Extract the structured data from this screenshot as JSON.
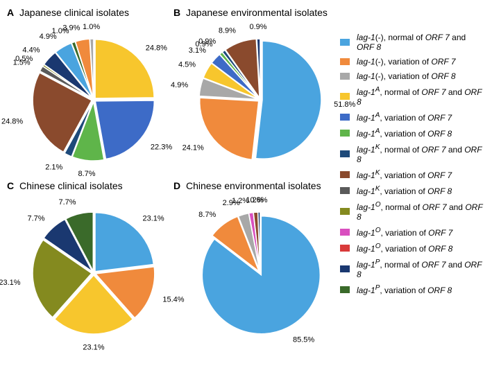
{
  "colors": {
    "c1": "#4aa4df",
    "c2": "#f08a3c",
    "c3": "#a8a8a8",
    "c4": "#f7c62d",
    "c5": "#3d6bc7",
    "c6": "#5fb54a",
    "c7": "#1e4a7a",
    "c8": "#8a4a2d",
    "c9": "#5a5a5a",
    "c10": "#848a1f",
    "c11": "#d94fbf",
    "c12": "#d93a3a",
    "c13": "#1a3870",
    "c14": "#3a6a2a"
  },
  "legend": [
    {
      "key": "c1",
      "html": "<em>lag-1</em>(-), normal of <em>ORF 7</em> and <em>ORF 8</em>"
    },
    {
      "key": "c2",
      "html": "<em>lag-1</em>(-), variation of <em>ORF 7</em>"
    },
    {
      "key": "c3",
      "html": "<em>lag-1</em>(-), variation of <em>ORF 8</em>"
    },
    {
      "key": "c4",
      "html": "<em>lag-1<sup>A</sup></em>, normal of <em>ORF 7</em> and <em>ORF 8</em>"
    },
    {
      "key": "c5",
      "html": "<em>lag-1<sup>A</sup></em>, variation of <em>ORF 7</em>"
    },
    {
      "key": "c6",
      "html": "<em>lag-1<sup>A</sup></em>, variation of <em>ORF 8</em>"
    },
    {
      "key": "c7",
      "html": "<em>lag-1<sup>K</sup></em>, normal of <em>ORF 7</em> and <em>ORF 8</em>"
    },
    {
      "key": "c8",
      "html": "<em>lag-1<sup>K</sup></em>, variation of <em>ORF 7</em>"
    },
    {
      "key": "c9",
      "html": "<em>lag-1<sup>K</sup></em>, variation of <em>ORF 8</em>"
    },
    {
      "key": "c10",
      "html": "<em>lag-1<sup>O</sup></em>, normal of <em>ORF 7</em> and <em>ORF 8</em>"
    },
    {
      "key": "c11",
      "html": "<em>lag-1<sup>O</sup></em>, variation of <em>ORF 7</em>"
    },
    {
      "key": "c12",
      "html": "<em>lag-1<sup>O</sup></em>, variation of <em>ORF 8</em>"
    },
    {
      "key": "c13",
      "html": "<em>lag-1<sup>P</sup></em>, normal of <em>ORF 7</em> and <em>ORF 8</em>"
    },
    {
      "key": "c14",
      "html": "<em>lag-1<sup>P</sup></em>, variation of <em>ORF 8</em>"
    }
  ],
  "panels": [
    {
      "id": "A",
      "title": "Japanese clinical isolates",
      "slices": [
        {
          "key": "c4",
          "v": 24.8,
          "label": "24.8%"
        },
        {
          "key": "c5",
          "v": 22.3,
          "label": "22.3%"
        },
        {
          "key": "c6",
          "v": 8.7,
          "label": "8.7%"
        },
        {
          "key": "c7",
          "v": 2.1,
          "label": "2.1%"
        },
        {
          "key": "c8",
          "v": 24.8,
          "label": "24.8%"
        },
        {
          "key": "c9",
          "v": 1.5,
          "label": "1.5%"
        },
        {
          "key": "c10",
          "v": 0.5,
          "label": "0.5%"
        },
        {
          "key": "c13",
          "v": 4.4,
          "label": "4.4%"
        },
        {
          "key": "c1",
          "v": 4.9,
          "label": "4.9%"
        },
        {
          "key": "c14",
          "v": 1.0,
          "label": "1.0%"
        },
        {
          "key": "c2",
          "v": 3.9,
          "label": "3.9%"
        },
        {
          "key": "c3",
          "v": 1.0,
          "label": "1.0%"
        }
      ]
    },
    {
      "id": "B",
      "title": "Japanese environmental isolates",
      "slices": [
        {
          "key": "c1",
          "v": 51.8,
          "label": "51.8%"
        },
        {
          "key": "c2",
          "v": 24.1,
          "label": "24.1%"
        },
        {
          "key": "c3",
          "v": 4.9,
          "label": "4.9%"
        },
        {
          "key": "c4",
          "v": 4.5,
          "label": "4.5%"
        },
        {
          "key": "c5",
          "v": 3.1,
          "label": "3.1%"
        },
        {
          "key": "c6",
          "v": 0.9,
          "label": "0.9%"
        },
        {
          "key": "c7",
          "v": 0.9,
          "label": "0.9%"
        },
        {
          "key": "c8",
          "v": 8.9,
          "label": "8.9%"
        },
        {
          "key": "c13",
          "v": 0.9,
          "label": "0.9%"
        }
      ]
    },
    {
      "id": "C",
      "title": "Chinese clinical isolates",
      "slices": [
        {
          "key": "c1",
          "v": 23.1,
          "label": "23.1%"
        },
        {
          "key": "c2",
          "v": 15.4,
          "label": "15.4%"
        },
        {
          "key": "c4",
          "v": 23.1,
          "label": "23.1%"
        },
        {
          "key": "c10",
          "v": 23.1,
          "label": "23.1%"
        },
        {
          "key": "c13",
          "v": 7.7,
          "label": "7.7%"
        },
        {
          "key": "c14",
          "v": 7.7,
          "label": "7.7%"
        }
      ]
    },
    {
      "id": "D",
      "title": "Chinese environmental isolates",
      "slices": [
        {
          "key": "c1",
          "v": 85.5,
          "label": "85.5%"
        },
        {
          "key": "c2",
          "v": 8.7,
          "label": "8.7%"
        },
        {
          "key": "c3",
          "v": 2.9,
          "label": "2.9%"
        },
        {
          "key": "c11",
          "v": 1.2,
          "label": "1.2%"
        },
        {
          "key": "c8",
          "v": 1.2,
          "label": "1.2%"
        },
        {
          "key": "c13",
          "v": 0.6,
          "label": "0.6%"
        }
      ]
    }
  ],
  "chart_style": {
    "radius": 85,
    "explode": 3,
    "label_radius": 1.25,
    "label_fontsize": 11,
    "title_fontsize": 14,
    "slice_stroke": "#ffffff",
    "slice_stroke_width": 1.5,
    "background": "#ffffff"
  }
}
